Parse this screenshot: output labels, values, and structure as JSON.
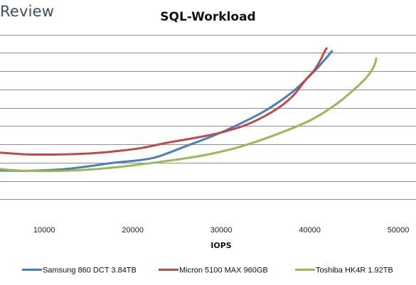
{
  "brand": "Review",
  "chart_data": {
    "type": "line",
    "title": "SQL-Workload",
    "xlabel": "IOPS",
    "ylabel": "",
    "xlim": [
      5000,
      52000
    ],
    "xticks": [
      10000,
      20000,
      30000,
      40000,
      50000
    ],
    "ylim": [
      0,
      11
    ],
    "y_gridlines": [
      1,
      2,
      3,
      4,
      5,
      6,
      7,
      8,
      9,
      10
    ],
    "grid": true,
    "legend": "bottom",
    "series": [
      {
        "name": "Samsung 860 DCT 3.84TB",
        "color": "#4a7ebb",
        "points": [
          [
            5000,
            2.57
          ],
          [
            8000,
            2.55
          ],
          [
            12000,
            2.63
          ],
          [
            15000,
            2.8
          ],
          [
            18000,
            3.0
          ],
          [
            21000,
            3.15
          ],
          [
            23000,
            3.35
          ],
          [
            26000,
            3.9
          ],
          [
            29000,
            4.45
          ],
          [
            32000,
            5.1
          ],
          [
            35000,
            5.85
          ],
          [
            38000,
            6.85
          ],
          [
            40000,
            7.75
          ],
          [
            41000,
            8.25
          ],
          [
            42000,
            8.8
          ],
          [
            42500,
            9.1
          ]
        ]
      },
      {
        "name": "Micron 5100 MAX 960GB",
        "color": "#be4b48",
        "points": [
          [
            5000,
            3.55
          ],
          [
            8000,
            3.45
          ],
          [
            12000,
            3.45
          ],
          [
            15000,
            3.5
          ],
          [
            18000,
            3.62
          ],
          [
            21000,
            3.8
          ],
          [
            24000,
            4.1
          ],
          [
            27000,
            4.35
          ],
          [
            30000,
            4.65
          ],
          [
            33000,
            5.1
          ],
          [
            36000,
            5.85
          ],
          [
            38000,
            6.6
          ],
          [
            39500,
            7.5
          ],
          [
            40500,
            8.05
          ],
          [
            41200,
            8.6
          ],
          [
            41700,
            9.1
          ],
          [
            41900,
            9.25
          ]
        ]
      },
      {
        "name": "Toshiba HK4R 1.92TB",
        "color": "#98b954",
        "points": [
          [
            5000,
            2.65
          ],
          [
            8000,
            2.55
          ],
          [
            12000,
            2.55
          ],
          [
            16000,
            2.65
          ],
          [
            20000,
            2.85
          ],
          [
            24000,
            3.1
          ],
          [
            28000,
            3.4
          ],
          [
            32000,
            3.85
          ],
          [
            36000,
            4.5
          ],
          [
            40000,
            5.3
          ],
          [
            43000,
            6.2
          ],
          [
            45000,
            7.0
          ],
          [
            46300,
            7.6
          ],
          [
            47000,
            8.05
          ],
          [
            47400,
            8.45
          ],
          [
            47500,
            8.7
          ]
        ]
      }
    ]
  }
}
